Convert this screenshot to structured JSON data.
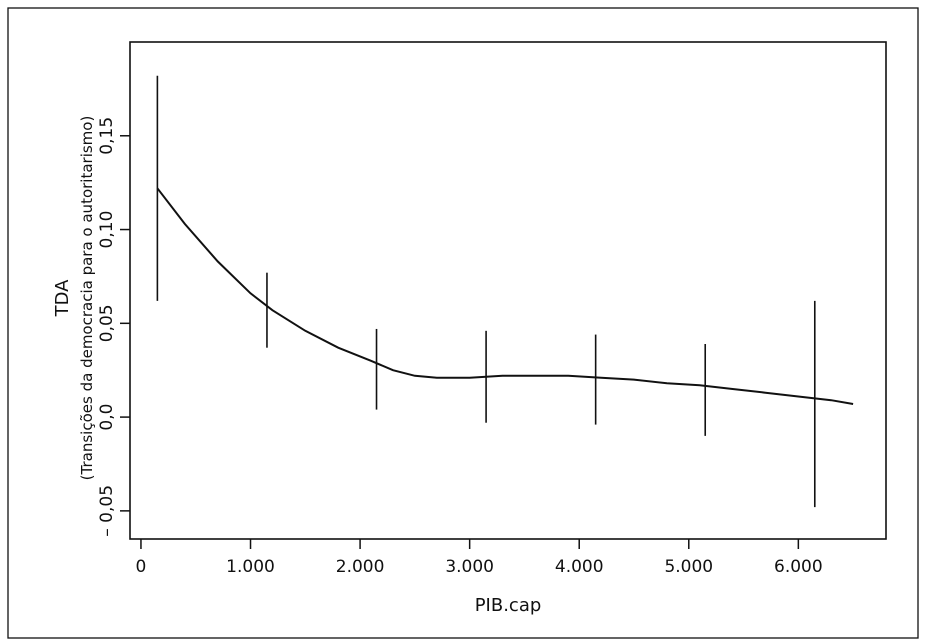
{
  "chart_data": {
    "type": "line",
    "title": "",
    "xlabel": "PIB.cap",
    "ylabel": "TDA",
    "ylabel_sub": "(Transições da democracia para o autoritarismo)",
    "xlim": [
      -100,
      6800
    ],
    "ylim": [
      -0.065,
      0.2
    ],
    "x_ticks": [
      0,
      1000,
      2000,
      3000,
      4000,
      5000,
      6000
    ],
    "x_tick_labels": [
      "0",
      "1.000",
      "2.000",
      "3.000",
      "4.000",
      "5.000",
      "6.000"
    ],
    "y_ticks": [
      -0.05,
      0.0,
      0.05,
      0.1,
      0.15
    ],
    "y_tick_labels": [
      "– 0,05",
      "0,0",
      "0,05",
      "0,10",
      "0,15"
    ],
    "grid": false,
    "series": [
      {
        "x": [
          150,
          400,
          700,
          1000,
          1200,
          1500,
          1800,
          2100,
          2300,
          2500,
          2700,
          3000,
          3300,
          3600,
          3900,
          4200,
          4500,
          4800,
          5100,
          5400,
          5700,
          6000,
          6300,
          6500
        ],
        "y": [
          0.122,
          0.103,
          0.083,
          0.066,
          0.057,
          0.046,
          0.037,
          0.03,
          0.025,
          0.022,
          0.021,
          0.021,
          0.022,
          0.022,
          0.022,
          0.021,
          0.02,
          0.018,
          0.017,
          0.015,
          0.013,
          0.011,
          0.009,
          0.007
        ]
      }
    ],
    "error_bars": [
      {
        "x": 150,
        "low": 0.062,
        "high": 0.182
      },
      {
        "x": 1150,
        "low": 0.037,
        "high": 0.077
      },
      {
        "x": 2150,
        "low": 0.004,
        "high": 0.047
      },
      {
        "x": 3150,
        "low": -0.003,
        "high": 0.046
      },
      {
        "x": 4150,
        "low": -0.004,
        "high": 0.044
      },
      {
        "x": 5150,
        "low": -0.01,
        "high": 0.039
      },
      {
        "x": 6150,
        "low": -0.048,
        "high": 0.062
      }
    ]
  }
}
